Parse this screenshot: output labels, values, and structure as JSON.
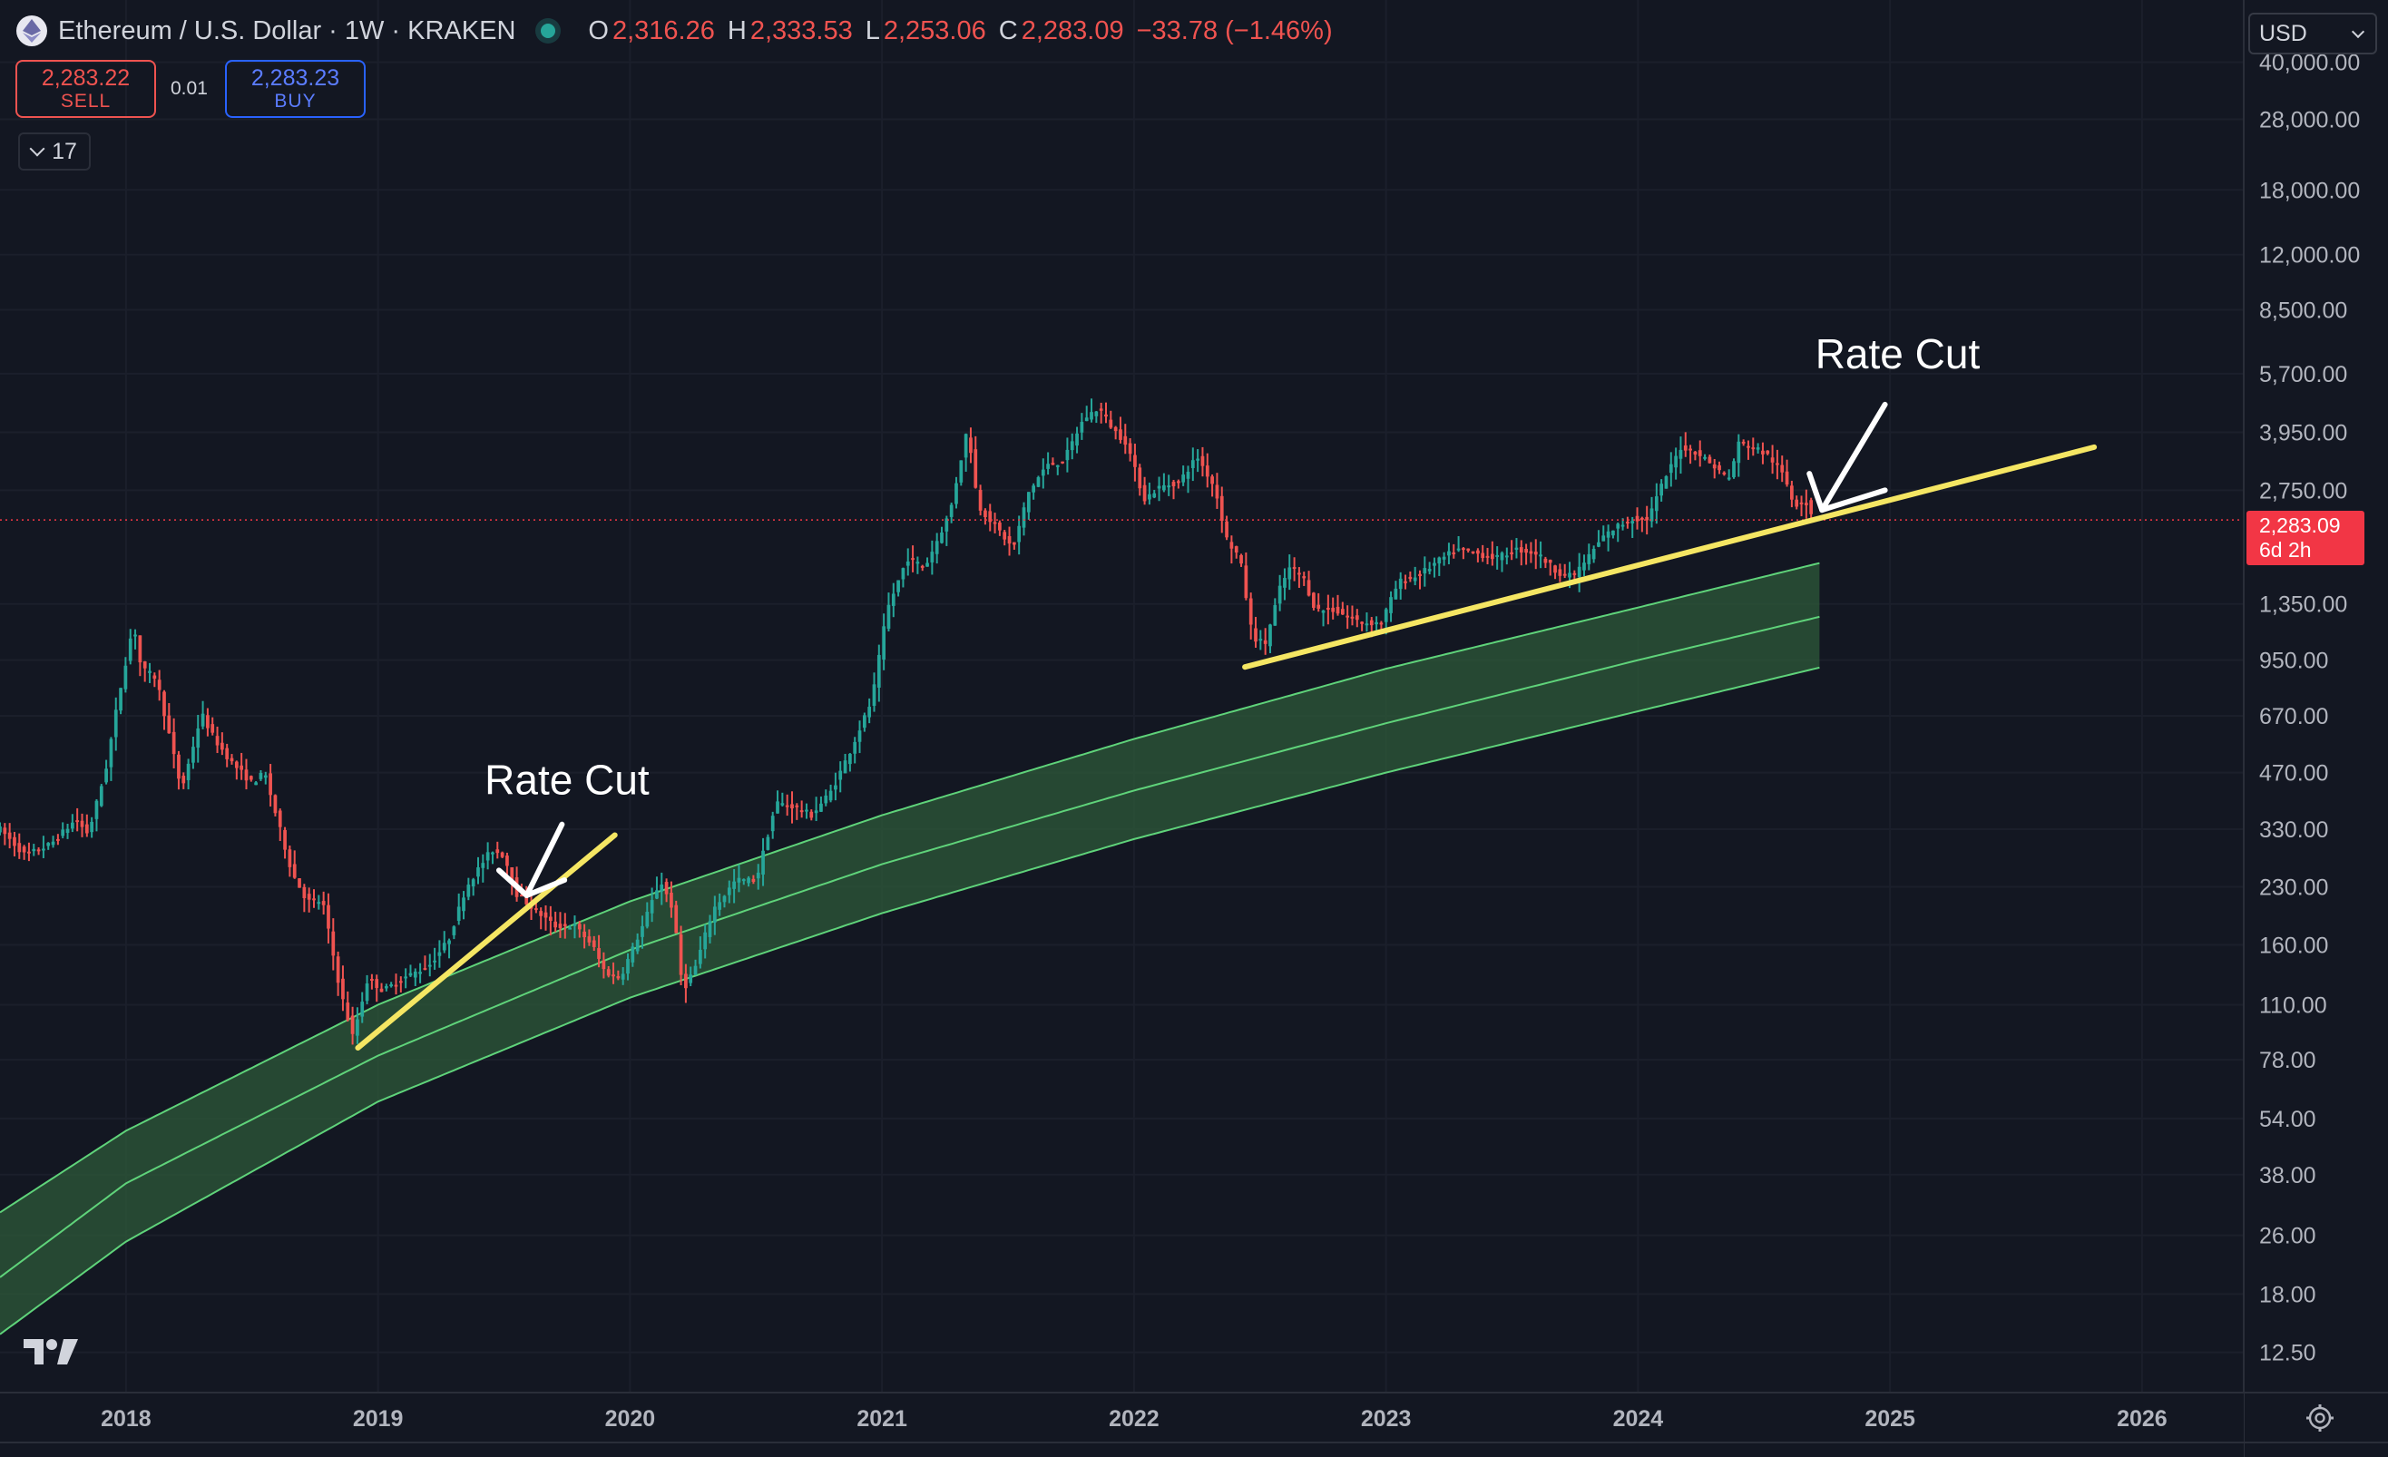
{
  "header": {
    "symbol": "Ethereum / U.S. Dollar · 1W · KRAKEN",
    "open_label": "O",
    "open": "2,316.26",
    "high_label": "H",
    "high": "2,333.53",
    "low_label": "L",
    "low": "2,253.06",
    "close_label": "C",
    "close": "2,283.09",
    "change": "−33.78 (−1.46%)"
  },
  "trade": {
    "sell_price": "2,283.22",
    "sell_label": "SELL",
    "spread": "0.01",
    "buy_price": "2,283.23",
    "buy_label": "BUY"
  },
  "indicators": {
    "count": "17"
  },
  "currency": {
    "selected": "USD"
  },
  "price_label": {
    "price": "2,283.09",
    "countdown": "6d 2h"
  },
  "colors": {
    "background": "#131722",
    "up": "#26a69a",
    "down": "#ef5350",
    "band": "#2e5a3a",
    "band_line": "#5fd37a",
    "trendline": "#f5e663",
    "annotation": "#ffffff"
  },
  "icons": {
    "logo": "ethereum-icon",
    "watermark": "tradingview-logo",
    "settings": "gear-icon"
  },
  "chart_data": {
    "type": "candlestick",
    "interval": "1W",
    "y_scale": "log",
    "ylim": [
      10,
      42000
    ],
    "xlim": [
      2017.5,
      2026.4
    ],
    "x_ticks": [
      {
        "label": "2018",
        "x": 2018.0
      },
      {
        "label": "2019",
        "x": 2019.0
      },
      {
        "label": "2020",
        "x": 2020.0
      },
      {
        "label": "2021",
        "x": 2021.0
      },
      {
        "label": "2022",
        "x": 2022.0
      },
      {
        "label": "2023",
        "x": 2023.0
      },
      {
        "label": "2024",
        "x": 2024.0
      },
      {
        "label": "2025",
        "x": 2025.0
      },
      {
        "label": "2026",
        "x": 2026.0
      }
    ],
    "y_ticks": [
      {
        "label": "40,000.00",
        "v": 40000
      },
      {
        "label": "28,000.00",
        "v": 28000
      },
      {
        "label": "18,000.00",
        "v": 18000
      },
      {
        "label": "12,000.00",
        "v": 12000
      },
      {
        "label": "8,500.00",
        "v": 8500
      },
      {
        "label": "5,700.00",
        "v": 5700
      },
      {
        "label": "3,950.00",
        "v": 3950
      },
      {
        "label": "2,750.00",
        "v": 2750
      },
      {
        "label": "1,350.00",
        "v": 1350
      },
      {
        "label": "950.00",
        "v": 950
      },
      {
        "label": "670.00",
        "v": 670
      },
      {
        "label": "470.00",
        "v": 470
      },
      {
        "label": "330.00",
        "v": 330
      },
      {
        "label": "230.00",
        "v": 230
      },
      {
        "label": "160.00",
        "v": 160
      },
      {
        "label": "110.00",
        "v": 110
      },
      {
        "label": "78.00",
        "v": 78
      },
      {
        "label": "54.00",
        "v": 54
      },
      {
        "label": "38.00",
        "v": 38
      },
      {
        "label": "26.00",
        "v": 26
      },
      {
        "label": "18.00",
        "v": 18
      },
      {
        "label": "12.50",
        "v": 12.5
      }
    ],
    "last_price": 2283.09,
    "price_path": [
      [
        2017.5,
        330
      ],
      [
        2017.6,
        280
      ],
      [
        2017.7,
        300
      ],
      [
        2017.8,
        350
      ],
      [
        2017.85,
        320
      ],
      [
        2017.92,
        480
      ],
      [
        2017.97,
        750
      ],
      [
        2018.03,
        1200
      ],
      [
        2018.06,
        900
      ],
      [
        2018.12,
        850
      ],
      [
        2018.17,
        600
      ],
      [
        2018.22,
        420
      ],
      [
        2018.3,
        680
      ],
      [
        2018.35,
        580
      ],
      [
        2018.42,
        500
      ],
      [
        2018.5,
        440
      ],
      [
        2018.55,
        470
      ],
      [
        2018.6,
        350
      ],
      [
        2018.66,
        250
      ],
      [
        2018.72,
        210
      ],
      [
        2018.78,
        210
      ],
      [
        2018.85,
        120
      ],
      [
        2018.9,
        90
      ],
      [
        2018.96,
        130
      ],
      [
        2019.02,
        120
      ],
      [
        2019.1,
        130
      ],
      [
        2019.2,
        140
      ],
      [
        2019.28,
        165
      ],
      [
        2019.35,
        230
      ],
      [
        2019.45,
        290
      ],
      [
        2019.5,
        280
      ],
      [
        2019.55,
        220
      ],
      [
        2019.62,
        200
      ],
      [
        2019.7,
        180
      ],
      [
        2019.78,
        180
      ],
      [
        2019.85,
        160
      ],
      [
        2019.9,
        135
      ],
      [
        2019.96,
        130
      ],
      [
        2020.05,
        180
      ],
      [
        2020.12,
        240
      ],
      [
        2020.17,
        200
      ],
      [
        2020.21,
        120
      ],
      [
        2020.26,
        140
      ],
      [
        2020.33,
        200
      ],
      [
        2020.42,
        240
      ],
      [
        2020.5,
        240
      ],
      [
        2020.58,
        390
      ],
      [
        2020.65,
        380
      ],
      [
        2020.72,
        360
      ],
      [
        2020.8,
        420
      ],
      [
        2020.88,
        550
      ],
      [
        2020.96,
        740
      ],
      [
        2021.02,
        1300
      ],
      [
        2021.1,
        1800
      ],
      [
        2021.17,
        1700
      ],
      [
        2021.27,
        2400
      ],
      [
        2021.34,
        4100
      ],
      [
        2021.38,
        2500
      ],
      [
        2021.45,
        2200
      ],
      [
        2021.52,
        1900
      ],
      [
        2021.58,
        2700
      ],
      [
        2021.65,
        3200
      ],
      [
        2021.72,
        3300
      ],
      [
        2021.8,
        4300
      ],
      [
        2021.86,
        4600
      ],
      [
        2021.92,
        4000
      ],
      [
        2021.97,
        3700
      ],
      [
        2022.04,
        2600
      ],
      [
        2022.1,
        2800
      ],
      [
        2022.18,
        2900
      ],
      [
        2022.25,
        3400
      ],
      [
        2022.32,
        2800
      ],
      [
        2022.37,
        2000
      ],
      [
        2022.42,
        1800
      ],
      [
        2022.47,
        1100
      ],
      [
        2022.52,
        1050
      ],
      [
        2022.58,
        1500
      ],
      [
        2022.62,
        1700
      ],
      [
        2022.67,
        1600
      ],
      [
        2022.72,
        1300
      ],
      [
        2022.79,
        1300
      ],
      [
        2022.85,
        1250
      ],
      [
        2022.9,
        1200
      ],
      [
        2022.98,
        1200
      ],
      [
        2023.05,
        1550
      ],
      [
        2023.12,
        1600
      ],
      [
        2023.2,
        1750
      ],
      [
        2023.28,
        1900
      ],
      [
        2023.36,
        1850
      ],
      [
        2023.44,
        1800
      ],
      [
        2023.52,
        1900
      ],
      [
        2023.6,
        1850
      ],
      [
        2023.68,
        1650
      ],
      [
        2023.74,
        1600
      ],
      [
        2023.8,
        1800
      ],
      [
        2023.86,
        2050
      ],
      [
        2023.92,
        2200
      ],
      [
        2023.98,
        2300
      ],
      [
        2024.04,
        2300
      ],
      [
        2024.1,
        2900
      ],
      [
        2024.17,
        3600
      ],
      [
        2024.23,
        3500
      ],
      [
        2024.3,
        3200
      ],
      [
        2024.36,
        2950
      ],
      [
        2024.4,
        3700
      ],
      [
        2024.46,
        3600
      ],
      [
        2024.52,
        3400
      ],
      [
        2024.58,
        3000
      ],
      [
        2024.62,
        2500
      ],
      [
        2024.66,
        2600
      ],
      [
        2024.7,
        2283
      ]
    ],
    "support_band": {
      "note": "logarithmic growth band",
      "upper": [
        [
          2017.5,
          30
        ],
        [
          2018.0,
          50
        ],
        [
          2019.0,
          110
        ],
        [
          2020.0,
          210
        ],
        [
          2021.0,
          360
        ],
        [
          2022.0,
          580
        ],
        [
          2023.0,
          900
        ],
        [
          2024.0,
          1320
        ],
        [
          2024.73,
          1750
        ]
      ],
      "middle": [
        [
          2017.5,
          20
        ],
        [
          2018.0,
          36
        ],
        [
          2019.0,
          80
        ],
        [
          2020.0,
          155
        ],
        [
          2021.0,
          265
        ],
        [
          2022.0,
          420
        ],
        [
          2023.0,
          640
        ],
        [
          2024.0,
          950
        ],
        [
          2024.73,
          1250
        ]
      ],
      "lower": [
        [
          2017.5,
          14
        ],
        [
          2018.0,
          25
        ],
        [
          2019.0,
          60
        ],
        [
          2020.0,
          115
        ],
        [
          2021.0,
          195
        ],
        [
          2022.0,
          310
        ],
        [
          2023.0,
          470
        ],
        [
          2024.0,
          690
        ],
        [
          2024.73,
          910
        ]
      ]
    },
    "trendlines": [
      {
        "from": [
          2018.92,
          84
        ],
        "to": [
          2019.94,
          318
        ]
      },
      {
        "from": [
          2022.44,
          910
        ],
        "to": [
          2025.81,
          3600
        ]
      }
    ],
    "annotations": [
      {
        "text": "Rate Cut",
        "x": 2019.75,
        "y": 410
      },
      {
        "text": "Rate Cut",
        "x": 2025.03,
        "y": 5900
      }
    ]
  }
}
